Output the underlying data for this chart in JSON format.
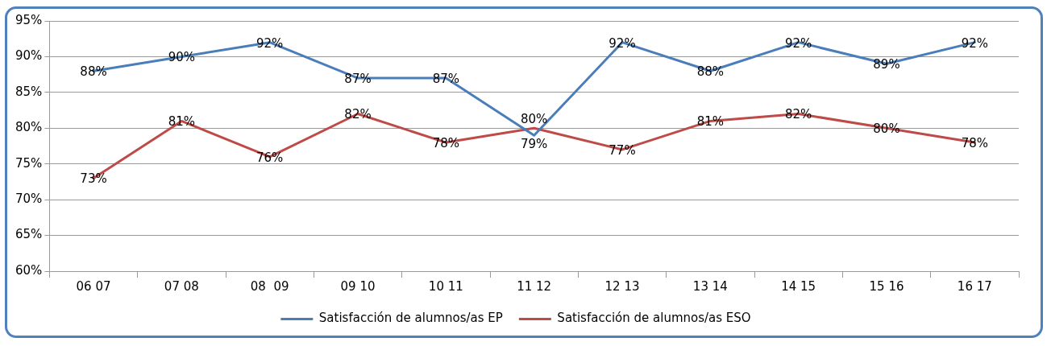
{
  "chart_data": {
    "type": "line",
    "categories": [
      "06 07",
      "07 08",
      "08  09",
      "09 10",
      "10 11",
      "11 12",
      "12 13",
      "13 14",
      "14 15",
      "15 16",
      "16 17"
    ],
    "series": [
      {
        "name": "Satisfacción de alumnos/as EP",
        "color": "#4a7ebb",
        "values": [
          88,
          90,
          92,
          87,
          87,
          79,
          92,
          88,
          92,
          89,
          92
        ],
        "value_labels": [
          "88%",
          "90%",
          "92%",
          "87%",
          "87%",
          "79%",
          "92%",
          "88%",
          "92%",
          "89%",
          "92%"
        ]
      },
      {
        "name": "Satisfacción de alumnos/as ESO",
        "color": "#be4b48",
        "values": [
          73,
          81,
          76,
          82,
          78,
          80,
          77,
          81,
          82,
          80,
          78
        ],
        "value_labels": [
          "73%",
          "81%",
          "76%",
          "82%",
          "78%",
          "80%",
          "77%",
          "81%",
          "82%",
          "80%",
          "78%"
        ]
      }
    ],
    "ylim": [
      60,
      95
    ],
    "yticks": [
      {
        "value": 60,
        "label": "60%"
      },
      {
        "value": 65,
        "label": "65%"
      },
      {
        "value": 70,
        "label": "70%"
      },
      {
        "value": 75,
        "label": "75%"
      },
      {
        "value": 80,
        "label": "80%"
      },
      {
        "value": 85,
        "label": "85%"
      },
      {
        "value": 90,
        "label": "90%"
      },
      {
        "value": 95,
        "label": "95%"
      }
    ],
    "grid": "y",
    "legend": "bottom",
    "marker": "none",
    "line_style": "solid"
  }
}
